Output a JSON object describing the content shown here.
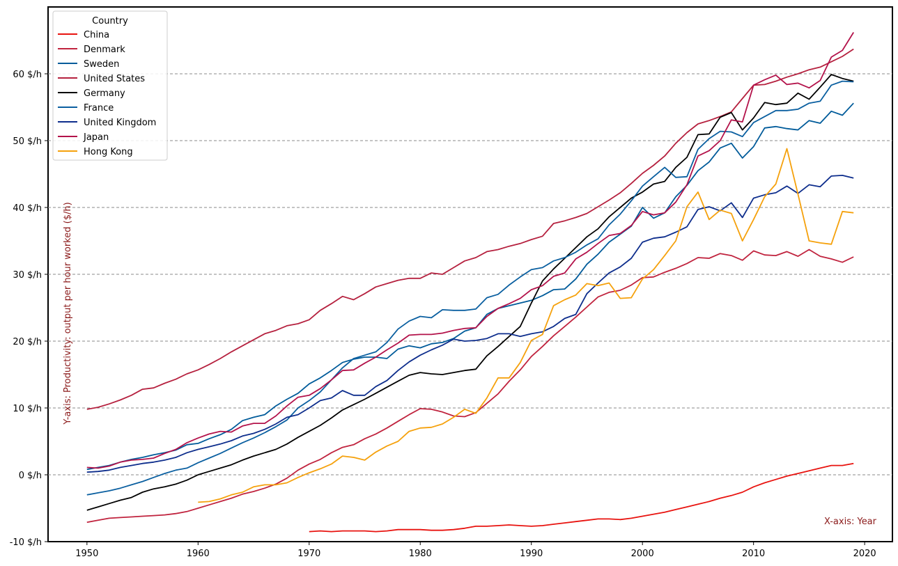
{
  "chart_data": {
    "type": "line",
    "title": "",
    "xlabel": "X-axis: Year",
    "ylabel": "Y-axis: Productivity: output per hour worked ($/h)",
    "label_color": "#8b1a1a",
    "xlim": [
      1946.5,
      2022.5
    ],
    "ylim": [
      -10,
      70
    ],
    "xticks": [
      1950,
      1960,
      1970,
      1980,
      1990,
      2000,
      2010,
      2020
    ],
    "yticks": [
      -10,
      0,
      10,
      20,
      30,
      40,
      50,
      60
    ],
    "yticks_labels": [
      "-10 $/h",
      "0 $/h",
      "10 $/h",
      "20 $/h",
      "30 $/h",
      "40 $/h",
      "50 $/h",
      "60 $/h"
    ],
    "grid": "horizontal-dashed",
    "legend": {
      "title": "Country",
      "position": "top-left"
    },
    "series": [
      {
        "name": "China",
        "color": "#e8130f",
        "x_start": 1970,
        "values": [
          -8.5,
          -8.4,
          -8.5,
          -8.4,
          -8.4,
          -8.4,
          -8.5,
          -8.4,
          -8.2,
          -8.2,
          -8.2,
          -8.3,
          -8.3,
          -8.2,
          -8.0,
          -7.7,
          -7.7,
          -7.6,
          -7.5,
          -7.6,
          -7.7,
          -7.6,
          -7.4,
          -7.2,
          -7.0,
          -6.8,
          -6.6,
          -6.6,
          -6.7,
          -6.5,
          -6.2,
          -5.9,
          -5.6,
          -5.2,
          -4.8,
          -4.4,
          -4.0,
          -3.5,
          -3.1,
          -2.6,
          -1.8,
          -1.2,
          -0.7,
          -0.2,
          0.2,
          0.6,
          1.0,
          1.4,
          1.4,
          1.7
        ]
      },
      {
        "name": "Denmark",
        "color": "#c0233e",
        "x_start": 1950,
        "values": [
          -7.1,
          -6.8,
          -6.5,
          -6.4,
          -6.3,
          -6.2,
          -6.1,
          -6.0,
          -5.8,
          -5.5,
          -5.0,
          -4.5,
          -4.0,
          -3.5,
          -2.9,
          -2.5,
          -2.0,
          -1.4,
          -0.5,
          0.7,
          1.6,
          2.3,
          3.3,
          4.1,
          4.5,
          5.4,
          6.1,
          7.0,
          8.0,
          9.0,
          9.9,
          9.8,
          9.4,
          8.8,
          8.7,
          9.3,
          10.7,
          12.1,
          14.0,
          15.7,
          17.7,
          19.2,
          20.8,
          22.2,
          23.6,
          25.1,
          26.6,
          27.3,
          27.6,
          28.4,
          29.5,
          29.6,
          30.3,
          30.9,
          31.6,
          32.5,
          32.4,
          33.1,
          32.8,
          32.1,
          33.5,
          32.9,
          32.8,
          33.4,
          32.7,
          33.7,
          32.7,
          32.3,
          31.8,
          32.6
        ]
      },
      {
        "name": "Sweden",
        "color": "#005b9a",
        "x_start": 1950,
        "values": [
          0.8,
          1.1,
          1.4,
          1.9,
          2.3,
          2.6,
          3.0,
          3.3,
          3.7,
          4.5,
          4.7,
          5.4,
          6.0,
          6.8,
          8.1,
          8.6,
          9.0,
          10.3,
          11.3,
          12.2,
          13.6,
          14.5,
          15.6,
          16.8,
          17.3,
          17.6,
          17.6,
          17.4,
          18.8,
          19.3,
          19.0,
          19.6,
          19.8,
          20.4,
          21.5,
          22.0,
          24.0,
          24.9,
          25.3,
          25.7,
          26.1,
          26.8,
          27.7,
          27.8,
          29.3,
          31.5,
          33.0,
          34.8,
          36.0,
          37.2,
          40.0,
          38.4,
          39.2,
          41.6,
          43.3,
          45.5,
          46.8,
          48.9,
          49.6,
          47.4,
          49.1,
          51.9,
          52.1,
          51.8,
          51.6,
          53.0,
          52.6,
          54.4,
          53.8,
          55.6
        ]
      },
      {
        "name": "United States",
        "color": "#b5203e",
        "x_start": 1950,
        "values": [
          9.8,
          10.1,
          10.6,
          11.2,
          11.9,
          12.8,
          13.0,
          13.7,
          14.3,
          15.1,
          15.7,
          16.5,
          17.4,
          18.4,
          19.3,
          20.2,
          21.1,
          21.6,
          22.3,
          22.6,
          23.2,
          24.6,
          25.6,
          26.7,
          26.2,
          27.1,
          28.1,
          28.6,
          29.1,
          29.4,
          29.4,
          30.2,
          30.0,
          31.0,
          32.0,
          32.5,
          33.4,
          33.7,
          34.2,
          34.6,
          35.2,
          35.7,
          37.6,
          38.0,
          38.5,
          39.1,
          40.1,
          41.1,
          42.2,
          43.6,
          45.1,
          46.3,
          47.7,
          49.6,
          51.2,
          52.5,
          53.0,
          53.6,
          54.3,
          56.3,
          58.3,
          58.4,
          58.9,
          59.5,
          60.0,
          60.6,
          61.0,
          61.8,
          62.6,
          63.7
        ]
      },
      {
        "name": "Germany",
        "color": "#000000",
        "x_start": 1950,
        "values": [
          -5.3,
          -4.8,
          -4.3,
          -3.8,
          -3.4,
          -2.6,
          -2.1,
          -1.8,
          -1.4,
          -0.8,
          0.0,
          0.5,
          1.0,
          1.5,
          2.2,
          2.8,
          3.3,
          3.8,
          4.6,
          5.6,
          6.5,
          7.4,
          8.5,
          9.7,
          10.5,
          11.3,
          12.2,
          13.1,
          14.0,
          14.9,
          15.3,
          15.1,
          15.0,
          15.3,
          15.6,
          15.8,
          17.8,
          19.2,
          20.7,
          22.2,
          25.7,
          29.0,
          30.8,
          32.4,
          34.0,
          35.6,
          36.8,
          38.6,
          40.0,
          41.4,
          42.3,
          43.5,
          43.9,
          46.0,
          47.5,
          50.9,
          51.0,
          53.5,
          54.2,
          51.6,
          53.4,
          55.7,
          55.4,
          55.6,
          57.1,
          56.2,
          58.0,
          59.9,
          59.3,
          58.9
        ]
      },
      {
        "name": "France",
        "color": "#0a5fa0",
        "x_start": 1950,
        "values": [
          -3.0,
          -2.7,
          -2.4,
          -2.0,
          -1.5,
          -1.0,
          -0.4,
          0.2,
          0.7,
          1.0,
          1.8,
          2.5,
          3.2,
          4.0,
          4.8,
          5.5,
          6.3,
          7.2,
          8.2,
          10.0,
          11.1,
          12.4,
          14.2,
          16.0,
          17.4,
          17.9,
          18.4,
          19.8,
          21.8,
          23.0,
          23.7,
          23.5,
          24.7,
          24.6,
          24.6,
          24.8,
          26.5,
          27.0,
          28.4,
          29.6,
          30.7,
          31.0,
          32.0,
          32.5,
          33.3,
          34.4,
          35.3,
          37.4,
          39.0,
          41.0,
          43.2,
          44.6,
          46.0,
          44.5,
          44.6,
          48.7,
          50.3,
          51.4,
          51.3,
          50.6,
          52.7,
          53.6,
          54.5,
          54.5,
          54.7,
          55.6,
          55.9,
          58.3,
          58.9,
          58.8
        ]
      },
      {
        "name": "United Kingdom",
        "color": "#0d2d8c",
        "x_start": 1950,
        "values": [
          0.4,
          0.5,
          0.7,
          1.1,
          1.4,
          1.7,
          1.9,
          2.2,
          2.6,
          3.3,
          3.8,
          4.2,
          4.6,
          5.1,
          5.8,
          6.2,
          6.8,
          7.6,
          8.6,
          9.0,
          10.0,
          11.1,
          11.5,
          12.6,
          11.9,
          11.9,
          13.2,
          14.1,
          15.6,
          16.9,
          17.9,
          18.7,
          19.4,
          20.3,
          20.0,
          20.1,
          20.4,
          21.1,
          21.1,
          20.7,
          21.1,
          21.4,
          22.2,
          23.4,
          24.0,
          27.1,
          28.7,
          30.2,
          31.1,
          32.4,
          34.8,
          35.4,
          35.6,
          36.3,
          37.1,
          39.7,
          40.1,
          39.5,
          40.7,
          38.5,
          41.4,
          41.9,
          42.2,
          43.2,
          42.1,
          43.4,
          43.1,
          44.7,
          44.8,
          44.4
        ]
      },
      {
        "name": "Japan",
        "color": "#b3124a",
        "x_start": 1950,
        "values": [
          1.1,
          1.0,
          1.3,
          1.9,
          2.2,
          2.3,
          2.5,
          3.2,
          3.8,
          4.8,
          5.5,
          6.1,
          6.5,
          6.4,
          7.3,
          7.7,
          7.7,
          8.8,
          10.3,
          11.6,
          11.9,
          12.9,
          14.2,
          15.6,
          15.7,
          16.7,
          17.6,
          18.7,
          19.7,
          20.9,
          21.0,
          21.0,
          21.2,
          21.6,
          21.9,
          22.0,
          23.7,
          24.9,
          25.6,
          26.4,
          27.7,
          28.3,
          29.7,
          30.2,
          32.3,
          33.3,
          34.6,
          35.8,
          36.1,
          37.3,
          39.4,
          38.9,
          39.2,
          40.8,
          43.4,
          47.7,
          48.5,
          50.0,
          53.1,
          52.8,
          58.3,
          59.1,
          59.8,
          58.4,
          58.6,
          57.9,
          59.0,
          62.5,
          63.5,
          66.2
        ]
      },
      {
        "name": "Hong Kong",
        "color": "#f5a10c",
        "x_start": 1960,
        "values": [
          -4.1,
          -4.0,
          -3.6,
          -3.0,
          -2.6,
          -1.8,
          -1.5,
          -1.5,
          -1.2,
          -0.4,
          0.3,
          0.9,
          1.6,
          2.8,
          2.6,
          2.2,
          3.4,
          4.3,
          5.0,
          6.5,
          7.0,
          7.1,
          7.6,
          8.6,
          9.8,
          9.2,
          11.5,
          14.5,
          14.5,
          16.8,
          20.1,
          21.0,
          25.3,
          26.2,
          26.9,
          28.6,
          28.3,
          28.7,
          26.4,
          26.5,
          29.3,
          30.7,
          32.8,
          35.0,
          40.1,
          42.3,
          38.2,
          39.6,
          39.1,
          35.0,
          38.2,
          41.6,
          43.5,
          48.8,
          42.0,
          35.0,
          34.7,
          34.5,
          39.4,
          39.2
        ]
      }
    ]
  }
}
